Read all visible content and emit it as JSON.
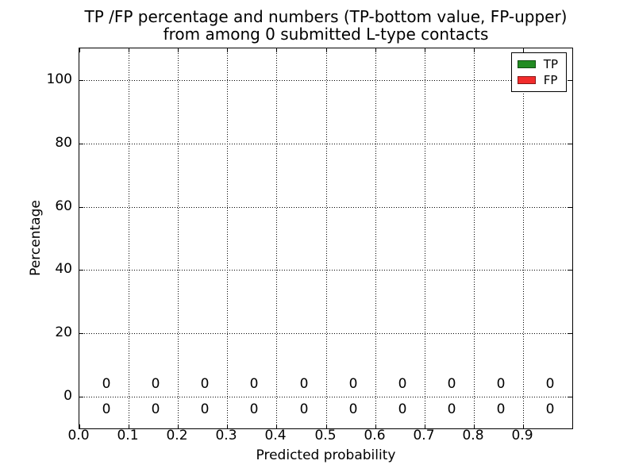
{
  "chart_data": {
    "type": "bar",
    "title_line1": "TP /FP percentage and numbers (TP-bottom value, FP-upper)",
    "title_line2": "from among 0 submitted L-type contacts",
    "xlabel": "Predicted probability",
    "ylabel": "Percentage",
    "xlim": [
      0.0,
      1.0
    ],
    "ylim": [
      -10,
      110
    ],
    "xtick_values": [
      0.0,
      0.1,
      0.2,
      0.3,
      0.4,
      0.5,
      0.6,
      0.7,
      0.8,
      0.9
    ],
    "xtick_labels": [
      "0.0",
      "0.1",
      "0.2",
      "0.3",
      "0.4",
      "0.5",
      "0.6",
      "0.7",
      "0.8",
      "0.9"
    ],
    "ytick_values": [
      0,
      20,
      40,
      60,
      80,
      100
    ],
    "ytick_labels": [
      "0",
      "20",
      "40",
      "60",
      "80",
      "100"
    ],
    "grid": true,
    "grid_linestyle": "dotted",
    "bar_centers": [
      0.055,
      0.155,
      0.255,
      0.355,
      0.455,
      0.555,
      0.655,
      0.755,
      0.855,
      0.955
    ],
    "bar_width": 0.09,
    "series": [
      {
        "name": "TP",
        "color": "#228b22",
        "values": [
          0,
          0,
          0,
          0,
          0,
          0,
          0,
          0,
          0,
          0
        ],
        "annotation_y": -4
      },
      {
        "name": "FP",
        "color": "#f22c2c",
        "values": [
          0,
          0,
          0,
          0,
          0,
          0,
          0,
          0,
          0,
          0
        ],
        "annotation_y": 4
      }
    ],
    "legend": {
      "position": "upper-right",
      "entries": [
        {
          "label": "TP",
          "color": "#228b22"
        },
        {
          "label": "FP",
          "color": "#f22c2c"
        }
      ]
    }
  }
}
